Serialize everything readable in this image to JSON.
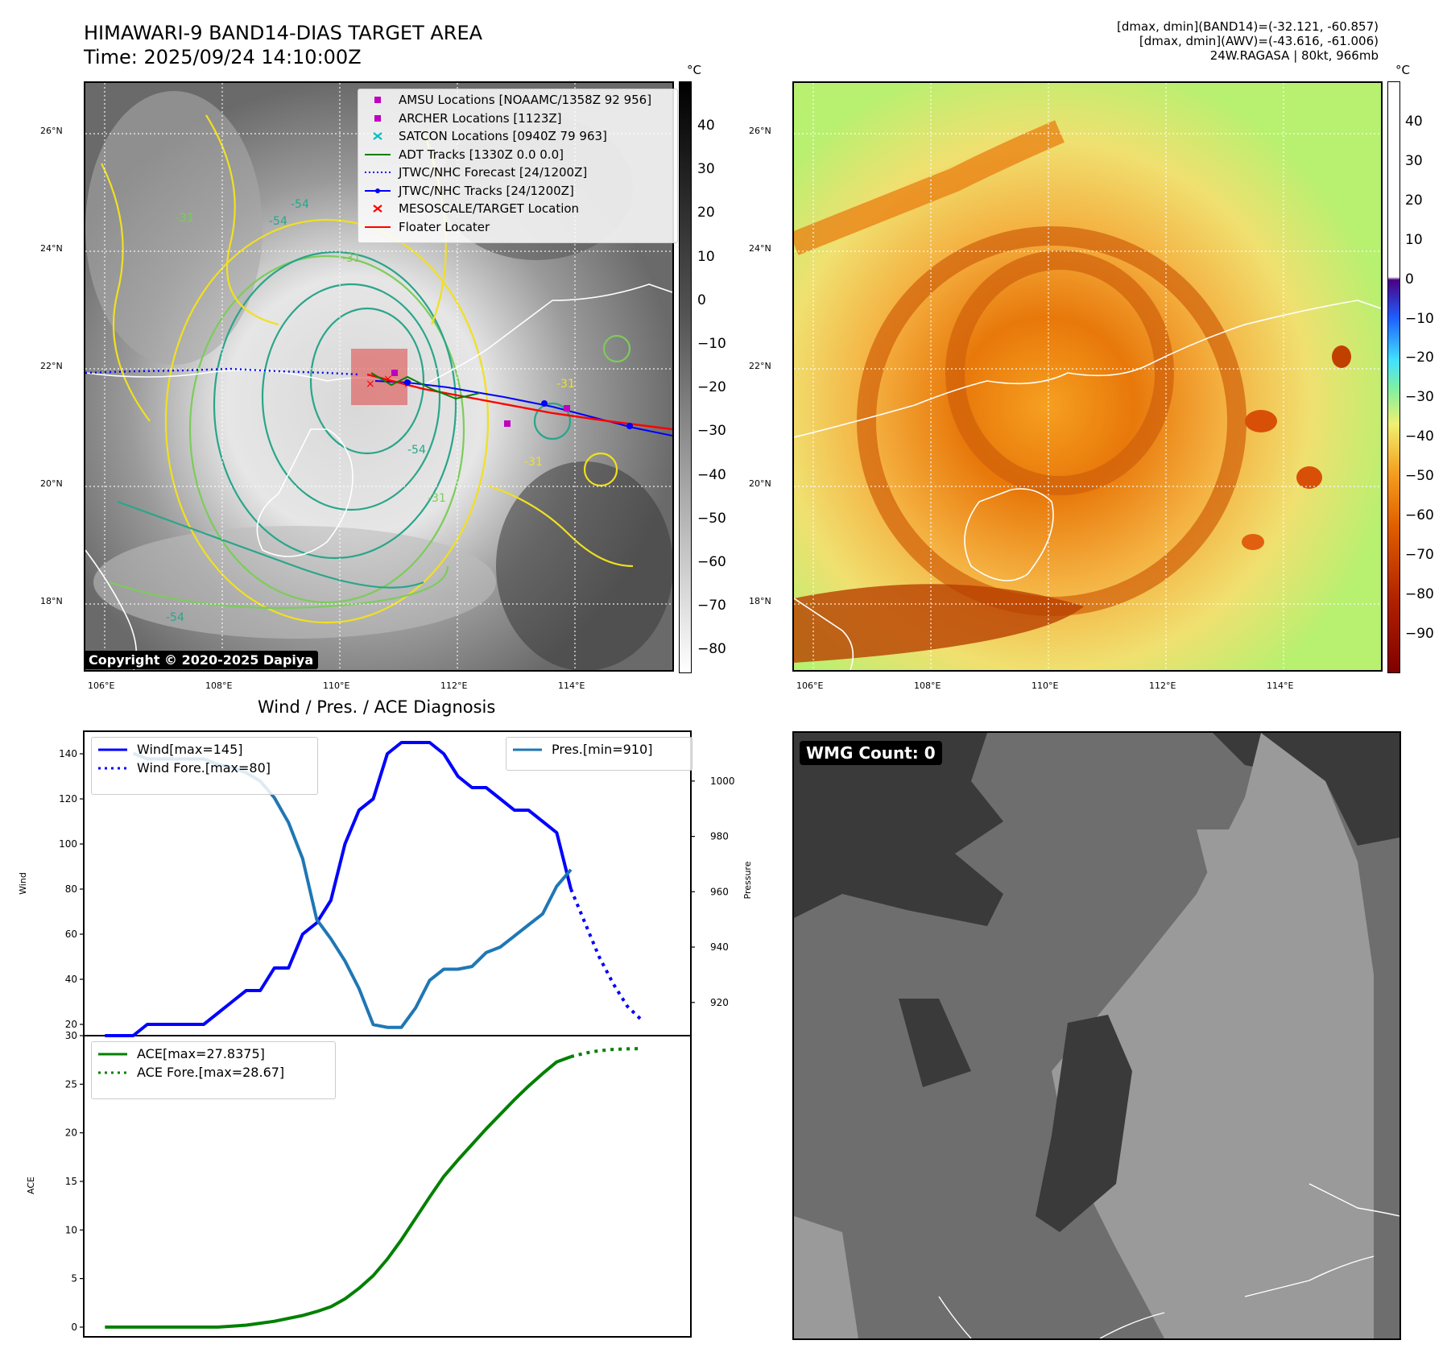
{
  "header": {
    "title_line1": "HIMAWARI-9 BAND14-DIAS TARGET AREA",
    "title_line2": "Time: 2025/09/24 14:10:00Z",
    "stat_line1": "[dmax, dmin](BAND14)=(-32.121, -60.857)",
    "stat_line2": "[dmax, dmin](AWV)=(-43.616, -61.006)",
    "stat_line3": "24W.RAGASA | 80kt, 966mb"
  },
  "map": {
    "lat_ticks": [
      "26°N",
      "24°N",
      "22°N",
      "20°N",
      "18°N"
    ],
    "lon_ticks": [
      "106°E",
      "108°E",
      "110°E",
      "112°E",
      "114°E"
    ],
    "contour_labels": [
      "-54",
      "-54",
      "-31",
      "-31",
      "-31",
      "-31",
      "-54",
      "-31",
      "-54"
    ],
    "copyright": "Copyright © 2020-2025 Dapiya"
  },
  "legend_map": [
    {
      "label": "AMSU Locations [NOAAMC/1358Z 92 956]",
      "marker": "square",
      "color": "#bf00bf"
    },
    {
      "label": "ARCHER Locations [1123Z]",
      "marker": "square",
      "color": "#bf00bf"
    },
    {
      "label": "SATCON Locations [0940Z 79 963]",
      "marker": "x",
      "color": "#00bfbf"
    },
    {
      "label": "ADT Tracks [1330Z 0.0 0.0]",
      "marker": "line",
      "color": "#008000"
    },
    {
      "label": "JTWC/NHC Forecast [24/1200Z]",
      "marker": "dotted",
      "color": "#0000ff"
    },
    {
      "label": "JTWC/NHC Tracks [24/1200Z]",
      "marker": "dotline",
      "color": "#0000ff"
    },
    {
      "label": "MESOSCALE/TARGET Location",
      "marker": "x",
      "color": "#ff0000"
    },
    {
      "label": "Floater Locater",
      "marker": "line",
      "color": "#ff0000"
    }
  ],
  "colorbar_gray": {
    "unit": "°C",
    "ticks": [
      "40",
      "30",
      "20",
      "10",
      "0",
      "−10",
      "−20",
      "−30",
      "−40",
      "−50",
      "−60",
      "−70",
      "−80"
    ]
  },
  "colorbar_awv": {
    "unit": "°C",
    "ticks": [
      "40",
      "30",
      "20",
      "10",
      "0",
      "−10",
      "−20",
      "−30",
      "−40",
      "−50",
      "−60",
      "−70",
      "−80",
      "−90"
    ]
  },
  "colors": {
    "wind": "#0000ff",
    "pres": "#1f77b4",
    "ace": "#008000",
    "contour_yellow": "#f0e020",
    "contour_green": "#7ccc5a",
    "contour_teal": "#2aa58a"
  },
  "wmg": {
    "label": "WMG Count: 0"
  },
  "chart_data": [
    {
      "type": "line",
      "title": "Wind / Pres. / ACE Diagnosis",
      "ylabel": "Wind",
      "ylabel_right": "Pressure",
      "ylim": [
        15,
        150
      ],
      "ylim_right": [
        908,
        1018
      ],
      "yticks": [
        "140",
        "120",
        "100",
        "80",
        "60",
        "40",
        "20"
      ],
      "yticks_right": [
        "1000",
        "980",
        "960",
        "940",
        "920"
      ],
      "legend_left": [
        "Wind[max=145]",
        "Wind Fore.[max=80]"
      ],
      "legend_right": [
        "Pres.[min=910]"
      ],
      "series": [
        {
          "name": "Wind[max=145]",
          "style": "solid",
          "color": "#0000ff",
          "x": [
            0,
            1,
            2,
            3,
            4,
            5,
            6,
            7,
            8,
            9,
            10,
            11,
            12,
            13,
            14,
            15,
            16,
            17,
            18,
            19,
            20,
            21,
            22,
            23,
            24,
            25,
            26,
            27,
            28,
            29,
            30,
            31,
            32,
            33,
            34,
            35,
            36,
            37,
            38
          ],
          "values": [
            15,
            15,
            15,
            20,
            20,
            20,
            20,
            20,
            25,
            30,
            35,
            35,
            45,
            45,
            60,
            65,
            75,
            100,
            115,
            120,
            140,
            145,
            145,
            145,
            140,
            130,
            125,
            125,
            120,
            115,
            115,
            110,
            105,
            80,
            null,
            null,
            null,
            null,
            null
          ]
        },
        {
          "name": "Wind Fore.[max=80]",
          "style": "dotted",
          "color": "#0000ff",
          "x": [
            33,
            34,
            35,
            36,
            37,
            38
          ],
          "values": [
            80,
            65,
            50,
            38,
            28,
            22
          ]
        },
        {
          "name": "Pres.[min=910]",
          "style": "solid",
          "color": "#1f77b4",
          "axis": "right",
          "x": [
            2,
            3,
            4,
            5,
            6,
            7,
            8,
            9,
            10,
            11,
            12,
            13,
            14,
            15,
            16,
            17,
            18,
            19,
            20,
            21,
            22,
            23,
            24,
            25,
            26,
            27,
            28,
            29,
            30,
            31,
            32,
            33
          ],
          "values": [
            1010,
            1008,
            1008,
            1008,
            1008,
            1008,
            1006,
            1005,
            1003,
            1000,
            994,
            985,
            972,
            950,
            943,
            935,
            925,
            912,
            911,
            911,
            918,
            928,
            932,
            932,
            933,
            938,
            940,
            944,
            948,
            952,
            962,
            968
          ]
        }
      ]
    },
    {
      "type": "line",
      "ylabel": "ACE",
      "ylim": [
        -1,
        30
      ],
      "yticks": [
        "30",
        "25",
        "20",
        "15",
        "10",
        "5",
        "0"
      ],
      "legend": [
        "ACE[max=27.8375]",
        "ACE Fore.[max=28.67]"
      ],
      "series": [
        {
          "name": "ACE[max=27.8375]",
          "style": "solid",
          "color": "#008000",
          "x": [
            0,
            1,
            2,
            3,
            4,
            5,
            6,
            7,
            8,
            9,
            10,
            11,
            12,
            13,
            14,
            15,
            16,
            17,
            18,
            19,
            20,
            21,
            22,
            23,
            24,
            25,
            26,
            27,
            28,
            29,
            30,
            31,
            32,
            33
          ],
          "values": [
            0,
            0,
            0,
            0,
            0,
            0,
            0,
            0,
            0,
            0.1,
            0.2,
            0.4,
            0.6,
            0.9,
            1.2,
            1.6,
            2.1,
            2.9,
            4.0,
            5.3,
            7.0,
            9.0,
            11.2,
            13.4,
            15.5,
            17.2,
            18.8,
            20.4,
            21.9,
            23.4,
            24.8,
            26.1,
            27.3,
            27.84
          ]
        },
        {
          "name": "ACE Fore.[max=28.67]",
          "style": "dotted",
          "color": "#008000",
          "x": [
            33,
            34,
            35,
            36,
            37,
            38
          ],
          "values": [
            27.84,
            28.2,
            28.45,
            28.58,
            28.64,
            28.67
          ]
        }
      ]
    }
  ]
}
